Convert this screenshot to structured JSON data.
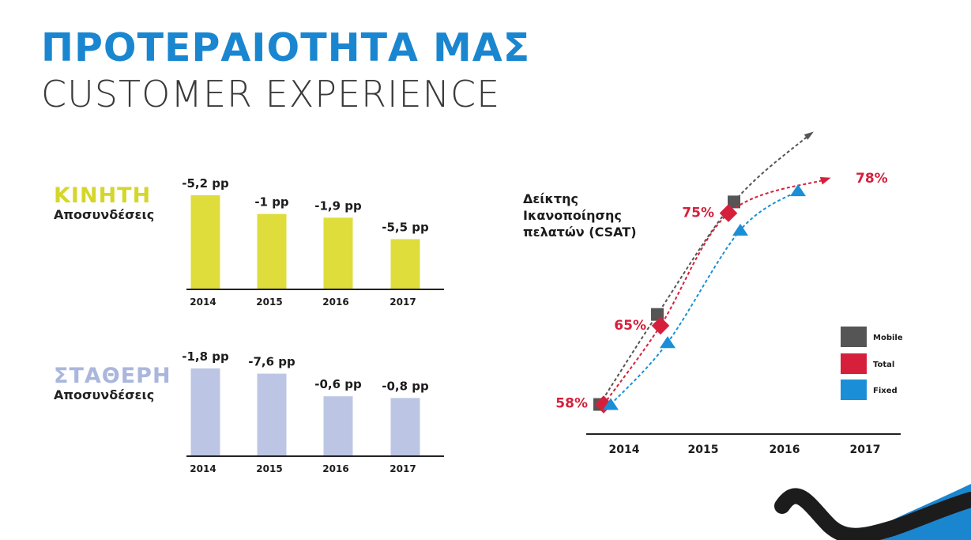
{
  "title": "ΠΡΟΤΕΡΑΙΟΤΗΤΑ ΜΑΣ",
  "subtitle": "CUSTOMER EXPERIENCE",
  "colors": {
    "title_blue": "#1a86d0",
    "mobile_bar": "#dedd3c",
    "mobile_label": "#d5d62a",
    "fixed_bar": "#bcc6e4",
    "fixed_label": "#aab6dc",
    "csat_mobile": "#555555",
    "csat_total": "#d6203b",
    "csat_fixed": "#1a8fd8"
  },
  "sections": {
    "mobile": {
      "label": "ΚΙΝΗΤΗ",
      "sublabel": "Αποσυνδέσεις"
    },
    "fixed": {
      "label": "ΣΤΑΘΕΡΗ",
      "sublabel": "Αποσυνδέσεις"
    }
  },
  "csat_label": [
    "Δείκτης",
    "Ικανοποίησης",
    "πελατών (CSAT)"
  ],
  "chart_data": [
    {
      "type": "bar",
      "title": "",
      "categories": [
        "2014",
        "2015",
        "2016",
        "2017"
      ],
      "values": [
        -5.2,
        -1,
        -1.9,
        -5.5
      ],
      "data_labels": [
        "-5,2 pp",
        "-1 pp",
        "-1,9 pp",
        "-5,5 pp"
      ],
      "relative_bar_heights": [
        1.0,
        0.8,
        0.76,
        0.53
      ],
      "grid": false
    },
    {
      "type": "bar",
      "title": "",
      "categories": [
        "2014",
        "2015",
        "2016",
        "2017"
      ],
      "values": [
        -1.8,
        -7.6,
        -0.6,
        -0.8
      ],
      "data_labels": [
        "-1,8 pp",
        "-7,6 pp",
        "-0,6 pp",
        "-0,8 pp"
      ],
      "relative_bar_heights": [
        1.0,
        0.94,
        0.68,
        0.66
      ],
      "grid": false
    },
    {
      "type": "line",
      "title": "",
      "categories": [
        "2014",
        "2015",
        "2016",
        "2017"
      ],
      "ylim": [
        56,
        82
      ],
      "series": [
        {
          "name": "Mobile",
          "values": [
            58,
            66,
            76,
            82
          ]
        },
        {
          "name": "Total",
          "values": [
            58,
            65,
            75,
            78
          ]
        },
        {
          "name": "Fixed",
          "values": [
            58,
            63.5,
            73.5,
            77
          ]
        }
      ],
      "value_labels": [
        {
          "text": "58%",
          "index": 0,
          "value": 58
        },
        {
          "text": "65%",
          "index": 1,
          "value": 65
        },
        {
          "text": "75%",
          "index": 2,
          "value": 75
        },
        {
          "text": "78%",
          "index": 3,
          "value": 78
        }
      ],
      "legend_position": "right",
      "grid": false
    }
  ]
}
